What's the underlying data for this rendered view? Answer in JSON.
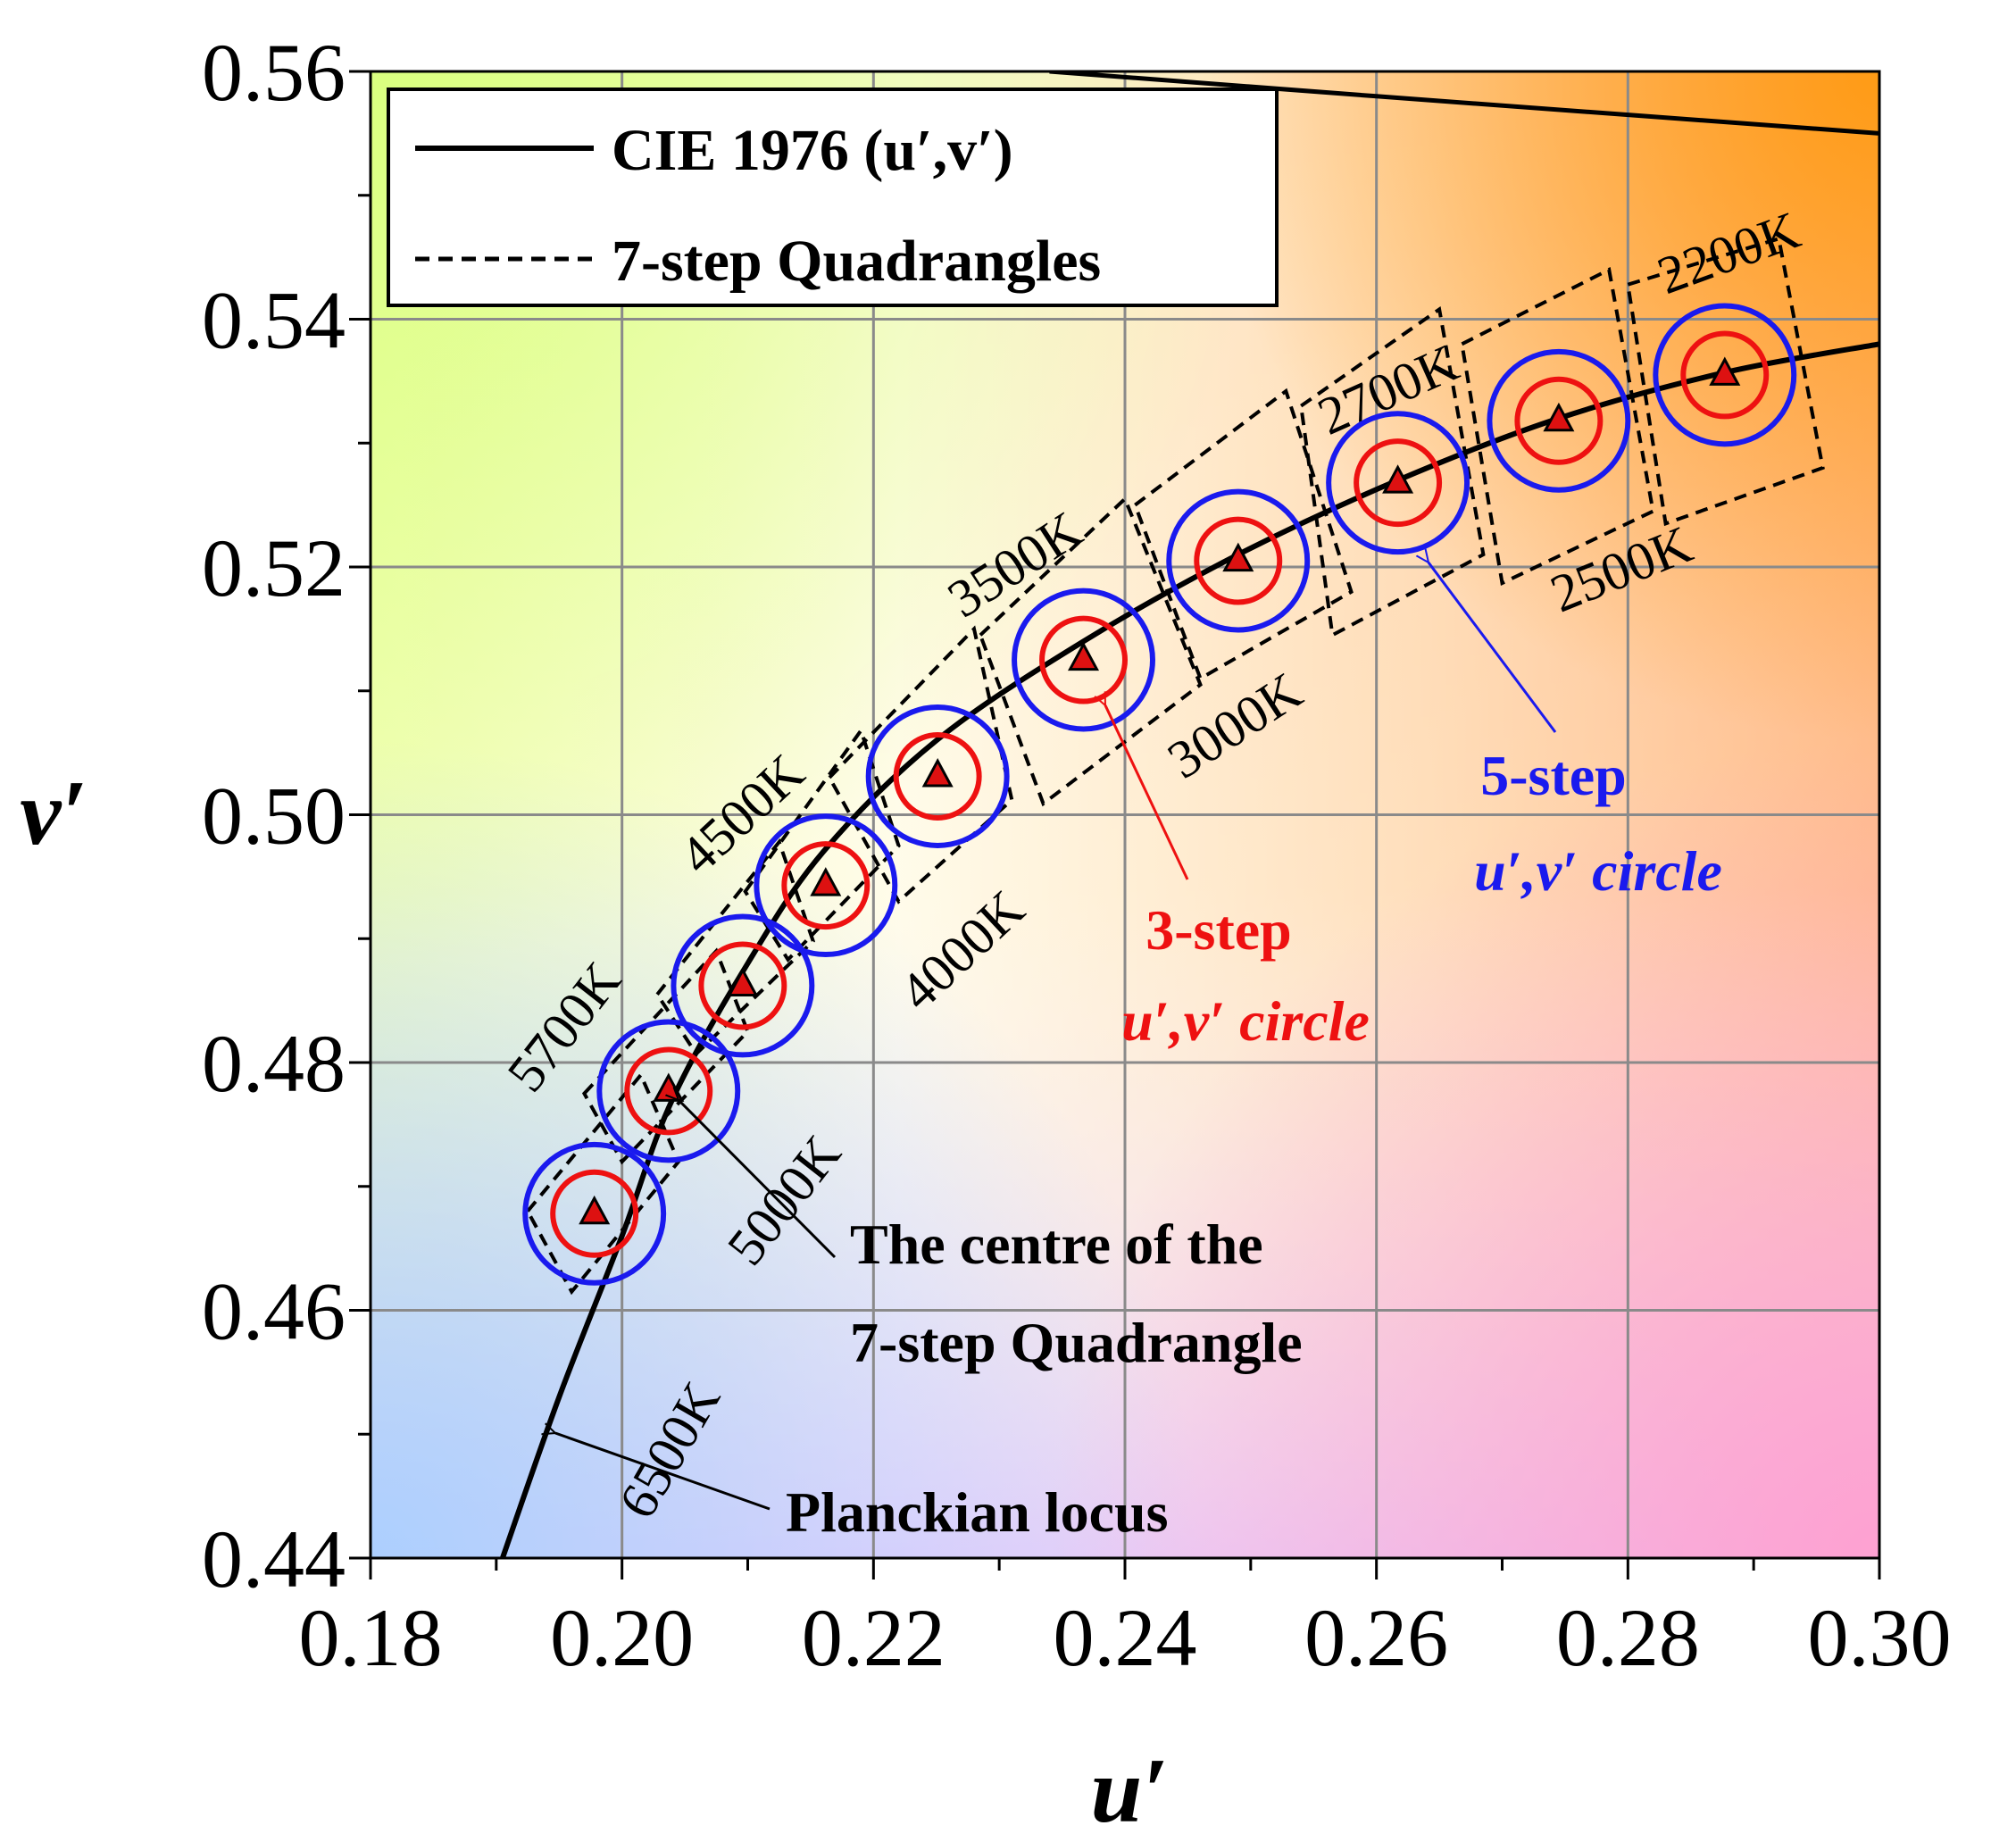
{
  "chart_data": {
    "type": "scatter",
    "xlabel": "u′",
    "ylabel": "v′",
    "xlim": [
      0.18,
      0.3
    ],
    "ylim": [
      0.44,
      0.56
    ],
    "x_ticks": [
      "0.18",
      "0.20",
      "0.22",
      "0.24",
      "0.26",
      "0.28",
      "0.30"
    ],
    "y_ticks": [
      "0.44",
      "0.46",
      "0.48",
      "0.50",
      "0.52",
      "0.54",
      "0.56"
    ],
    "grid": true,
    "legend": {
      "placement": "top-left",
      "entries": [
        {
          "label": "CIE 1976 (u′,v′)",
          "style": "solid"
        },
        {
          "label": "7-step Quadrangles",
          "style": "dashed"
        }
      ]
    },
    "planckian_locus": {
      "name": "Planckian locus",
      "u": [
        0.1905,
        0.195,
        0.2,
        0.204,
        0.21,
        0.216,
        0.225,
        0.2367,
        0.249,
        0.2617,
        0.2745,
        0.2877,
        0.3
      ],
      "v": [
        0.44,
        0.453,
        0.466,
        0.477,
        0.488,
        0.497,
        0.506,
        0.514,
        0.521,
        0.527,
        0.532,
        0.5357,
        0.538
      ]
    },
    "spectral_boundary": {
      "u": [
        0.234,
        0.26,
        0.3
      ],
      "v": [
        0.56,
        0.558,
        0.555
      ]
    },
    "quadrangle_centres": [
      {
        "cct": "6500K",
        "u": 0.1978,
        "v": 0.4678
      },
      {
        "cct": "5700K",
        "u": 0.2037,
        "v": 0.4777
      },
      {
        "cct": "5000K",
        "u": 0.2096,
        "v": 0.4862
      },
      {
        "cct": "4500K",
        "u": 0.2162,
        "v": 0.4943
      },
      {
        "cct": "4000K",
        "u": 0.2251,
        "v": 0.5031
      },
      {
        "cct": "3500K",
        "u": 0.2367,
        "v": 0.5125
      },
      {
        "cct": "3000K",
        "u": 0.249,
        "v": 0.5205
      },
      {
        "cct": "2700K",
        "u": 0.2617,
        "v": 0.5268
      },
      {
        "cct": "2500K",
        "u": 0.2745,
        "v": 0.5318
      },
      {
        "cct": "2200K",
        "u": 0.2877,
        "v": 0.5355
      }
    ],
    "circles": {
      "three_step_radius": 0.0033,
      "five_step_radius": 0.0055
    },
    "quadrangles": [
      {
        "cct": "6500K",
        "corners": [
          [
            0.1925,
            0.468
          ],
          [
            0.2015,
            0.479
          ],
          [
            0.2045,
            0.472
          ],
          [
            0.196,
            0.4615
          ]
        ]
      },
      {
        "cct": "5700K",
        "corners": [
          [
            0.197,
            0.4775
          ],
          [
            0.2075,
            0.489
          ],
          [
            0.21,
            0.4825
          ],
          [
            0.2,
            0.472
          ]
        ]
      },
      {
        "cct": "5000K",
        "corners": [
          [
            0.2028,
            0.4855
          ],
          [
            0.2125,
            0.4978
          ],
          [
            0.2152,
            0.4898
          ],
          [
            0.2059,
            0.4807
          ]
        ]
      },
      {
        "cct": "4500K",
        "corners": [
          [
            0.2098,
            0.4938
          ],
          [
            0.219,
            0.5068
          ],
          [
            0.222,
            0.4975
          ],
          [
            0.2132,
            0.4883
          ]
        ]
      },
      {
        "cct": "4000K",
        "corners": [
          [
            0.2165,
            0.503
          ],
          [
            0.228,
            0.515
          ],
          [
            0.231,
            0.5012
          ],
          [
            0.222,
            0.493
          ]
        ]
      },
      {
        "cct": "3500K",
        "corners": [
          [
            0.2285,
            0.5145
          ],
          [
            0.24,
            0.5255
          ],
          [
            0.246,
            0.5105
          ],
          [
            0.2335,
            0.5009
          ]
        ]
      },
      {
        "cct": "3000K",
        "corners": [
          [
            0.2408,
            0.525
          ],
          [
            0.2528,
            0.5342
          ],
          [
            0.258,
            0.518
          ],
          [
            0.246,
            0.511
          ]
        ]
      },
      {
        "cct": "2700K",
        "corners": [
          [
            0.254,
            0.533
          ],
          [
            0.265,
            0.5408
          ],
          [
            0.2685,
            0.521
          ],
          [
            0.2565,
            0.5145
          ]
        ]
      },
      {
        "cct": "2500K",
        "corners": [
          [
            0.2668,
            0.538
          ],
          [
            0.2785,
            0.544
          ],
          [
            0.282,
            0.5245
          ],
          [
            0.27,
            0.5187
          ]
        ]
      },
      {
        "cct": "2200K",
        "corners": [
          [
            0.28,
            0.5428
          ],
          [
            0.292,
            0.5465
          ],
          [
            0.2955,
            0.528
          ],
          [
            0.283,
            0.5235
          ]
        ]
      }
    ],
    "cct_labels": [
      {
        "text": "6500K",
        "u": 0.205,
        "v": 0.448,
        "rotate": -60
      },
      {
        "text": "5700K",
        "u": 0.1965,
        "v": 0.482,
        "rotate": -52
      },
      {
        "text": "5000K",
        "u": 0.214,
        "v": 0.468,
        "rotate": -52
      },
      {
        "text": "4500K",
        "u": 0.2105,
        "v": 0.499,
        "rotate": -43
      },
      {
        "text": "4000K",
        "u": 0.228,
        "v": 0.488,
        "rotate": -43
      },
      {
        "text": "3500K",
        "u": 0.232,
        "v": 0.519,
        "rotate": -33
      },
      {
        "text": "3000K",
        "u": 0.2495,
        "v": 0.506,
        "rotate": -33
      },
      {
        "text": "2700K",
        "u": 0.2615,
        "v": 0.533,
        "rotate": -24
      },
      {
        "text": "2500K",
        "u": 0.28,
        "v": 0.5185,
        "rotate": -22
      },
      {
        "text": "2200K",
        "u": 0.2885,
        "v": 0.544,
        "rotate": -20
      }
    ],
    "annotations": [
      {
        "lines": [
          "5-step",
          "u′,v′ circle"
        ],
        "color": "#1a1aee"
      },
      {
        "lines": [
          "3-step",
          "u′,v′ circle"
        ],
        "color": "#ee1111"
      },
      {
        "lines": [
          "The centre of the",
          "7-step Quadrangle"
        ],
        "color": "#000000"
      },
      {
        "lines": [
          "Planckian locus"
        ],
        "color": "#000000"
      }
    ],
    "colors": {
      "locus": "#000000",
      "three_step": "#ee1111",
      "five_step": "#1a1aee",
      "marker_fill": "#dd1111",
      "grid": "#8a8a8a"
    }
  }
}
